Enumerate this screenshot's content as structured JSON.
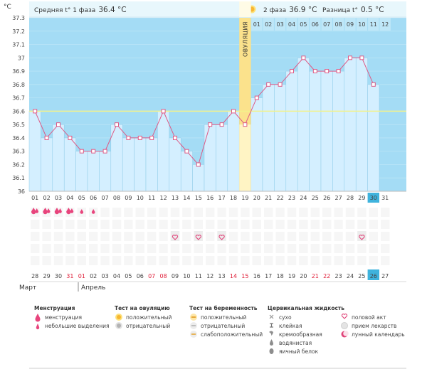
{
  "header": {
    "axis_unit": "°C",
    "phase1_label": "Средняя t° 1 фаза",
    "phase1_value": "36.4 °C",
    "phase2_label": "2 фаза",
    "phase2_value": "36.9 °C",
    "diff_label": "Разница t°",
    "diff_value": "0.5 °C",
    "ovulation_label": "ОВУЛЯЦИЯ"
  },
  "chart_data": {
    "type": "line",
    "title": "",
    "xlabel": "",
    "ylabel": "°C",
    "ylim": [
      36,
      37.3
    ],
    "y_ticks": [
      "36",
      "36.1",
      "36.2",
      "36.3",
      "36.4",
      "36.5",
      "36.6",
      "36.7",
      "36.8",
      "36.9",
      "37",
      "37.1",
      "37.2",
      "37.3"
    ],
    "cycle_days": [
      "01",
      "02",
      "03",
      "04",
      "05",
      "06",
      "07",
      "08",
      "09",
      "10",
      "11",
      "12",
      "13",
      "14",
      "15",
      "16",
      "17",
      "18",
      "19",
      "20",
      "21",
      "22",
      "23",
      "24",
      "25",
      "26",
      "27",
      "28",
      "29",
      "30",
      "31"
    ],
    "phase2_days": [
      "01",
      "02",
      "03",
      "04",
      "05",
      "06",
      "07",
      "08",
      "09",
      "10",
      "11",
      "12"
    ],
    "temperatures": [
      36.6,
      36.4,
      36.5,
      36.4,
      36.3,
      36.3,
      36.3,
      36.5,
      36.4,
      36.4,
      36.4,
      36.6,
      36.4,
      36.3,
      36.2,
      36.5,
      36.5,
      36.6,
      36.5,
      36.7,
      36.8,
      36.8,
      36.9,
      37.0,
      36.9,
      36.9,
      36.9,
      37.0,
      37.0,
      36.8
    ],
    "coverline": 36.6,
    "ovulation_day": 19,
    "current_day": 30,
    "grid": true,
    "calendar_dates": [
      "28",
      "29",
      "30",
      "31",
      "01",
      "02",
      "03",
      "04",
      "05",
      "06",
      "07",
      "08",
      "09",
      "10",
      "11",
      "12",
      "13",
      "14",
      "15",
      "16",
      "17",
      "18",
      "19",
      "20",
      "21",
      "22",
      "23",
      "24",
      "25",
      "26",
      "27"
    ],
    "red_date_indices": [
      3,
      4,
      10,
      11,
      17,
      18,
      24,
      25
    ],
    "current_date_index": 29,
    "months": [
      "Март",
      "Апрель"
    ],
    "menstruation_days": [
      1,
      2,
      3,
      4
    ],
    "spotting_days": [
      5,
      6
    ],
    "intercourse_days": [
      13,
      15,
      17,
      29
    ]
  },
  "colors": {
    "header_bg": "#e8f7fc",
    "plot_bg": "#a4dcf5",
    "bar_fill": "#d4efff",
    "bar_edge": "#8ecbe8",
    "line": "#de5a86",
    "coverline": "#f3f28a",
    "ovulation": "#fbe28c",
    "current_day": "#3fb3dd"
  },
  "legend": {
    "menstruation": {
      "title": "Менструация",
      "items": [
        {
          "icon": "drop-icon",
          "label": "менструация"
        },
        {
          "icon": "small-drop-icon",
          "label": "небольшие выделения"
        }
      ]
    },
    "ovulation_test": {
      "title": "Тест на овуляцию",
      "items": [
        {
          "icon": "sun-icon",
          "label": "положительный"
        },
        {
          "icon": "sun-grey-icon",
          "label": "отрицательный"
        }
      ]
    },
    "pregnancy_test": {
      "title": "Тест на беременность",
      "items": [
        {
          "icon": "test-positive-icon",
          "label": "положительный"
        },
        {
          "icon": "test-negative-icon",
          "label": "отрицательный"
        },
        {
          "icon": "test-weak-icon",
          "label": "слабоположительный"
        }
      ]
    },
    "cervical_fluid": {
      "title": "Цервикальная жидкость",
      "items": [
        {
          "icon": "dry-icon",
          "label": "сухо"
        },
        {
          "icon": "sticky-icon",
          "label": "клейкая"
        },
        {
          "icon": "creamy-icon",
          "label": "кремообразная"
        },
        {
          "icon": "watery-icon",
          "label": "водянистая"
        },
        {
          "icon": "egg-white-icon",
          "label": "яичный белок"
        }
      ]
    },
    "other": {
      "items": [
        {
          "icon": "heart-icon",
          "label": "половой акт"
        },
        {
          "icon": "pill-icon",
          "label": "прием лекарств"
        },
        {
          "icon": "moon-icon",
          "label": "лунный календарь"
        }
      ]
    }
  }
}
